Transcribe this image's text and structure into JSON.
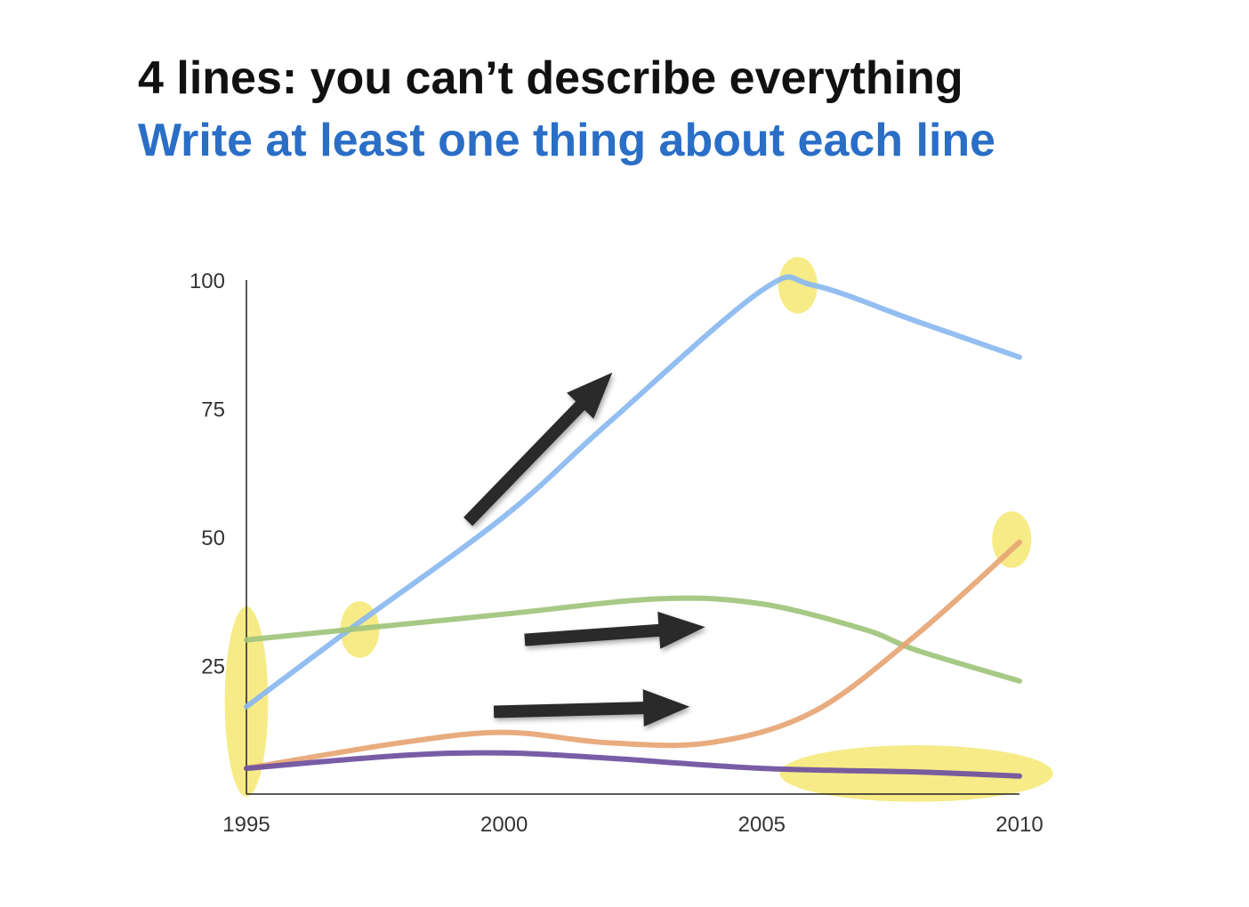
{
  "slide": {
    "title": "4 lines: you can’t describe everything",
    "subtitle": "Write at least one thing about each line"
  },
  "colors": {
    "title": "#111111",
    "subtitle": "#2a6ec6",
    "highlight": "#f5e97a",
    "arrow": "#2b2b2b"
  },
  "chart_data": {
    "type": "line",
    "title": "",
    "xlabel": "",
    "ylabel": "",
    "xlim": [
      1995,
      2010
    ],
    "ylim": [
      0,
      100
    ],
    "x_ticks": [
      1995,
      2000,
      2005,
      2010
    ],
    "y_ticks": [
      25,
      50,
      75,
      100
    ],
    "grid": false,
    "legend": "none",
    "series": [
      {
        "color": "#8ab8f0",
        "x": [
          1995,
          1997,
          2000,
          2002,
          2005,
          2006,
          2008,
          2010
        ],
        "y": [
          17,
          32,
          54,
          72,
          98,
          99,
          92,
          85
        ]
      },
      {
        "color": "#a0c47c",
        "x": [
          1995,
          1997,
          2000,
          2003,
          2005,
          2007,
          2008,
          2010
        ],
        "y": [
          30,
          32,
          35,
          38,
          37,
          32,
          28,
          22
        ]
      },
      {
        "color": "#e6a574",
        "x": [
          1995,
          1998,
          2000,
          2002,
          2004,
          2006,
          2008,
          2010
        ],
        "y": [
          5,
          10,
          12,
          10,
          10,
          16,
          31,
          49
        ]
      },
      {
        "color": "#6d4f9e",
        "x": [
          1995,
          1998,
          2000,
          2002,
          2005,
          2008,
          2010
        ],
        "y": [
          5,
          7.5,
          8,
          7,
          5,
          4.3,
          3.5
        ]
      }
    ],
    "annotations": [
      {
        "type": "highlight-ellipse",
        "note": "starting values",
        "cx": 1995,
        "cy": 18,
        "rx": 0.42,
        "ry": 18.5
      },
      {
        "type": "highlight-ellipse",
        "note": "blue crosses green",
        "cx": 1997.2,
        "cy": 32,
        "rx": 0.38,
        "ry": 5.5
      },
      {
        "type": "highlight-ellipse",
        "note": "blue peak",
        "cx": 2005.7,
        "cy": 99,
        "rx": 0.38,
        "ry": 5.5
      },
      {
        "type": "highlight-ellipse",
        "note": "orange end",
        "cx": 2009.85,
        "cy": 49.5,
        "rx": 0.38,
        "ry": 5.5
      },
      {
        "type": "highlight-ellipse",
        "note": "purple flat",
        "cx": 2008,
        "cy": 4,
        "rx": 2.65,
        "ry": 5.5
      },
      {
        "type": "arrow",
        "note": "blue rising",
        "x1": 1999.3,
        "y1": 53,
        "x2": 2002.1,
        "y2": 82
      },
      {
        "type": "arrow",
        "note": "green flat",
        "x1": 2000.4,
        "y1": 30,
        "x2": 2003.9,
        "y2": 32.5
      },
      {
        "type": "arrow",
        "note": "orange flat",
        "x1": 1999.8,
        "y1": 16,
        "x2": 2003.6,
        "y2": 17
      }
    ]
  }
}
